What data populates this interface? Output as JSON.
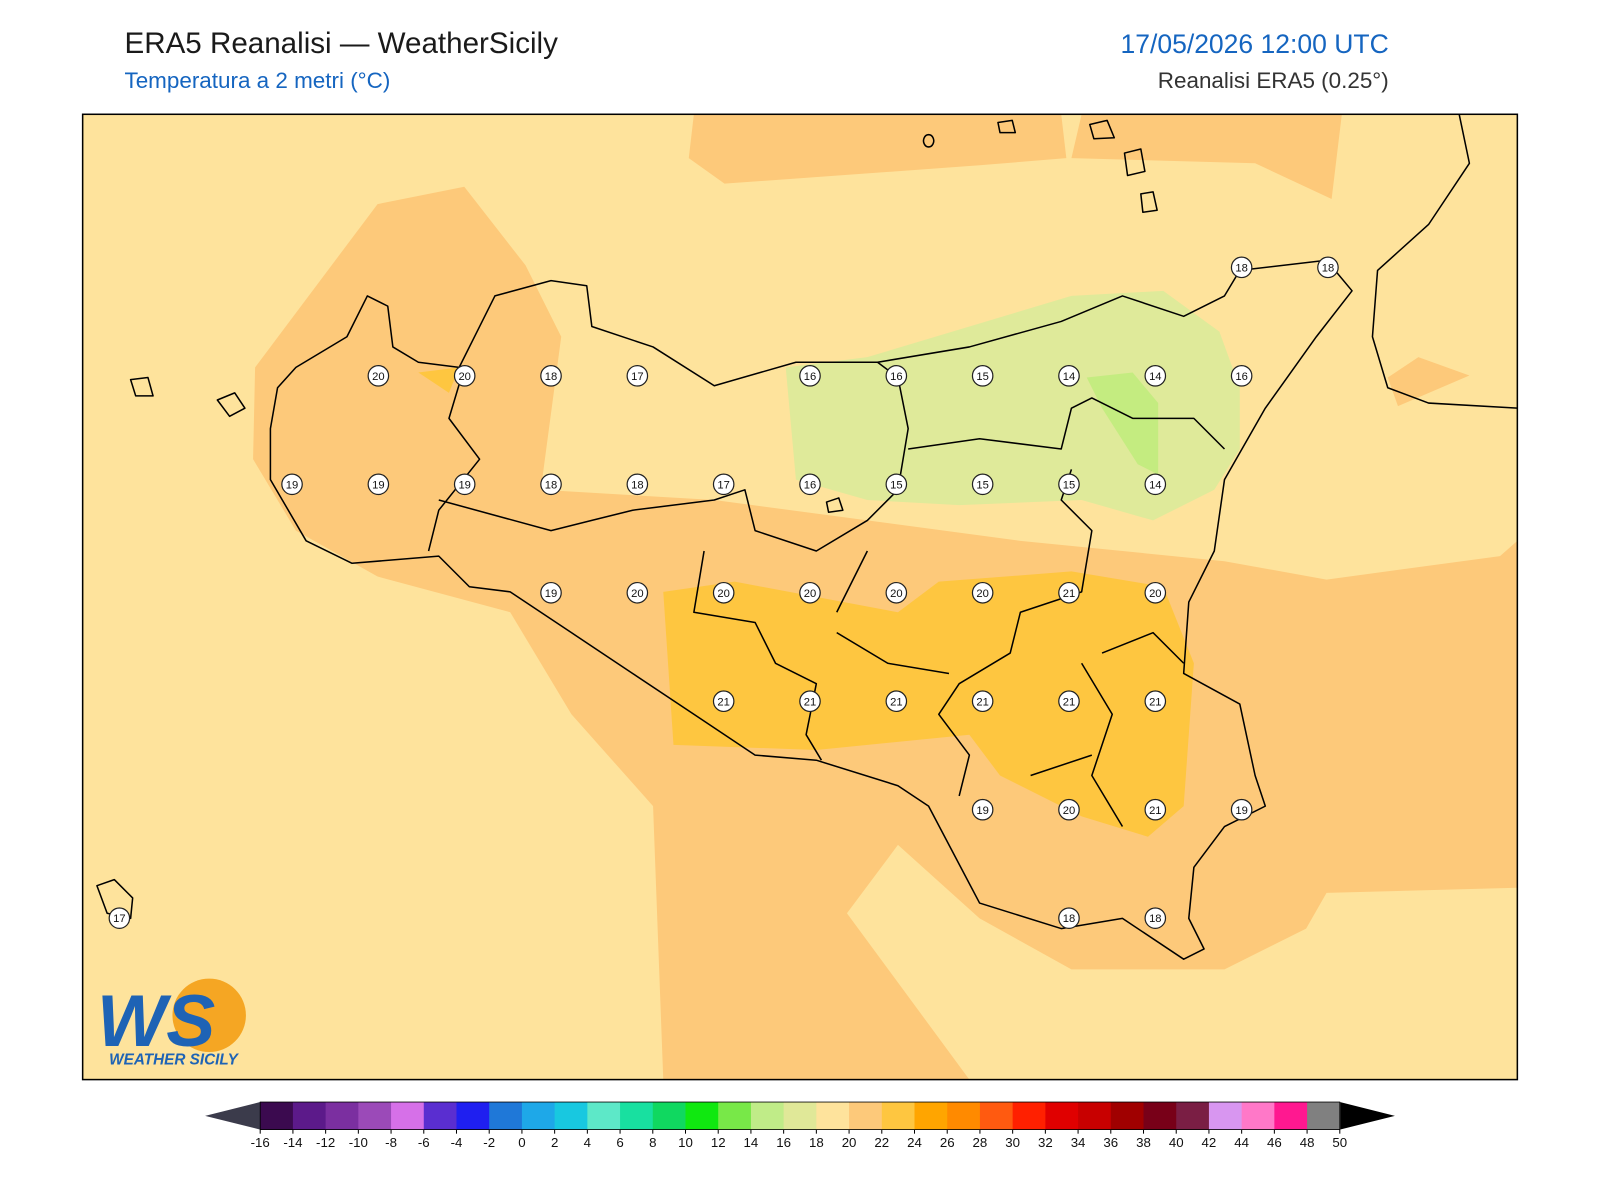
{
  "header": {
    "title": "ERA5 Reanalisi — WeatherSicily",
    "subtitle": "Temperatura a 2 metri (°C)",
    "datetime": "17/05/2026 12:00 UTC",
    "source": "Reanalisi ERA5 (0.25°)"
  },
  "stations": {
    "rows": [
      [
        null,
        null,
        null,
        null,
        null,
        null,
        null,
        null,
        null,
        null,
        null,
        null,
        null,
        18,
        18
      ],
      [
        null,
        null,
        null,
        20,
        20,
        18,
        17,
        null,
        16,
        16,
        15,
        14,
        14,
        16,
        null
      ],
      [
        null,
        null,
        19,
        19,
        19,
        18,
        18,
        17,
        16,
        15,
        15,
        15,
        14,
        null,
        null
      ],
      [
        null,
        null,
        null,
        null,
        null,
        19,
        20,
        20,
        20,
        20,
        20,
        21,
        20,
        null,
        null
      ],
      [
        null,
        null,
        null,
        null,
        null,
        null,
        null,
        21,
        21,
        21,
        21,
        21,
        21,
        null,
        null
      ],
      [
        null,
        null,
        null,
        null,
        null,
        null,
        null,
        null,
        null,
        null,
        19,
        20,
        21,
        19,
        null
      ],
      [
        17,
        null,
        null,
        null,
        null,
        null,
        null,
        null,
        null,
        null,
        null,
        18,
        18,
        null,
        null
      ]
    ]
  },
  "colorbar": {
    "ticks": [
      -16,
      -14,
      -12,
      -10,
      -8,
      -6,
      -4,
      -2,
      0,
      2,
      4,
      6,
      8,
      10,
      12,
      14,
      16,
      18,
      20,
      22,
      24,
      26,
      28,
      30,
      32,
      34,
      36,
      38,
      40,
      42,
      44,
      46,
      48,
      50
    ],
    "colors": [
      "#3b0a4f",
      "#5c1a8a",
      "#7b2fa0",
      "#9b4ab8",
      "#d670e8",
      "#5a2ed0",
      "#1f1ff0",
      "#1f78d8",
      "#1ea8e8",
      "#18c8e0",
      "#5de8c8",
      "#18e0a0",
      "#10d860",
      "#10e810",
      "#78e848",
      "#c0ec88",
      "#e0e898",
      "#fee39c",
      "#fdc97a",
      "#fec640",
      "#ffa500",
      "#ff8a00",
      "#ff5a10",
      "#ff2000",
      "#e00000",
      "#c80000",
      "#a00000",
      "#780018",
      "#7a1e44",
      "#d896f0",
      "#ff78c8",
      "#ff1890",
      "#808080",
      "#3c3c3c"
    ],
    "under": "#3b3b4b",
    "over": "#000000"
  },
  "logo": {
    "initials": "WS",
    "name": "WEATHER SICILY"
  }
}
